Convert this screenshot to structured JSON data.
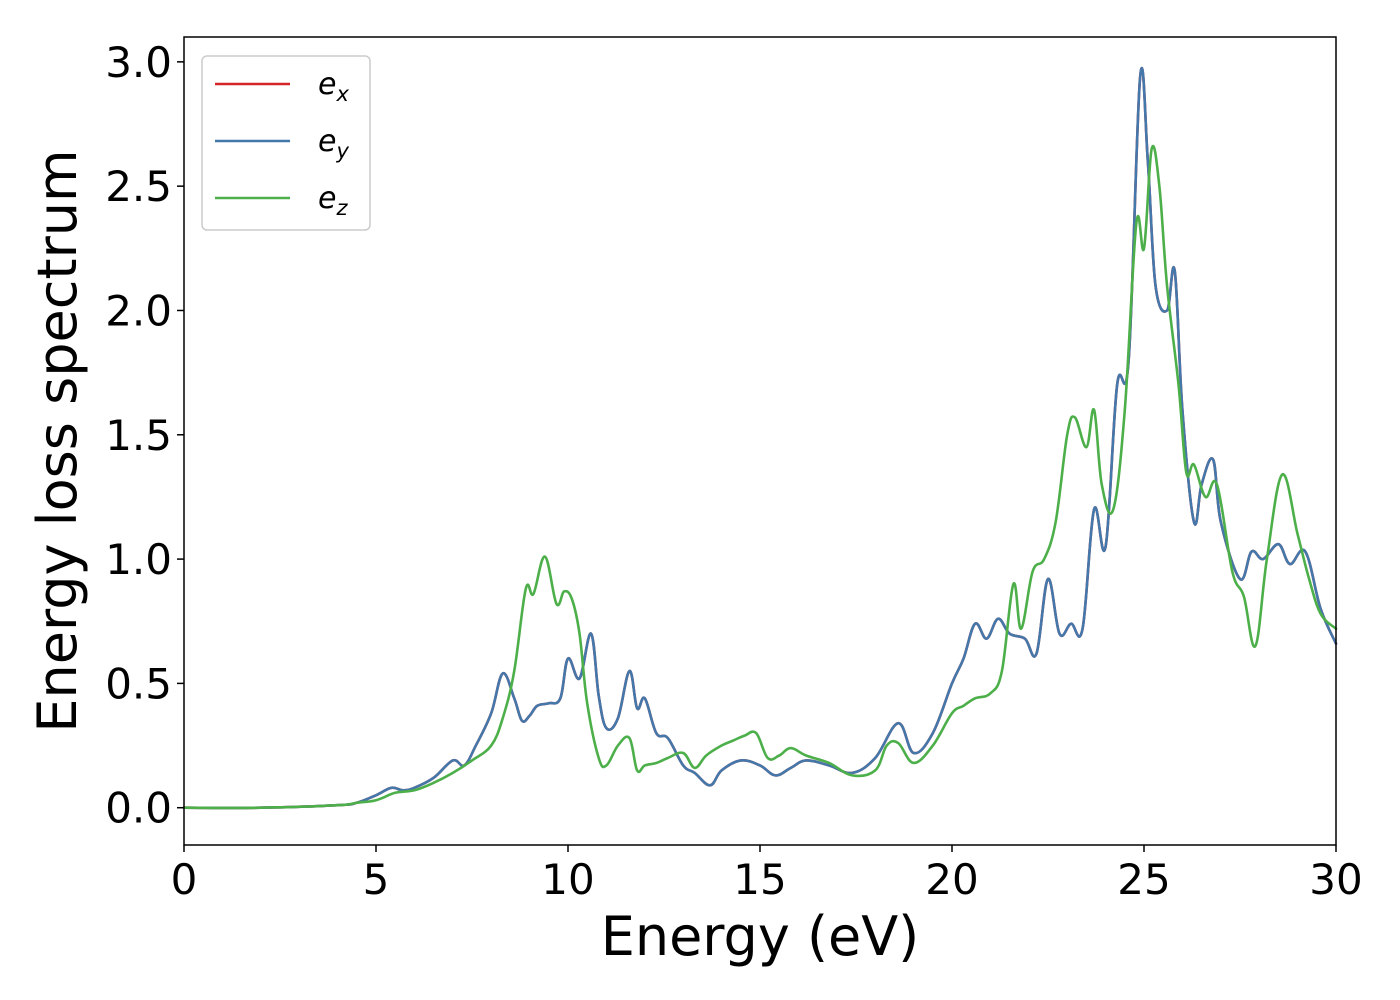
{
  "chart_data": {
    "type": "line",
    "title": "",
    "xlabel": "Energy (eV)",
    "ylabel": "Energy loss spectrum",
    "xlim": [
      0,
      30
    ],
    "ylim": [
      -0.15,
      3.1
    ],
    "xticks": [
      0,
      5,
      10,
      15,
      20,
      25,
      30
    ],
    "xtick_labels": [
      "0",
      "5",
      "10",
      "15",
      "20",
      "25",
      "30"
    ],
    "yticks": [
      0.0,
      0.5,
      1.0,
      1.5,
      2.0,
      2.5,
      3.0
    ],
    "ytick_labels": [
      "0.0",
      "0.5",
      "1.0",
      "1.5",
      "2.0",
      "2.5",
      "3.0"
    ],
    "grid": false,
    "legend": {
      "position": "top-left",
      "entries": [
        {
          "base": "e",
          "sub": "x",
          "color": "#d62728"
        },
        {
          "base": "e",
          "sub": "y",
          "color": "#4477aa"
        },
        {
          "base": "e",
          "sub": "z",
          "color": "#4daf4a"
        }
      ]
    },
    "series": [
      {
        "color": "#d62728",
        "x": [
          0,
          2,
          4,
          4.5,
          5,
          5.4,
          5.7,
          6,
          6.5,
          7,
          7.3,
          7.6,
          8,
          8.3,
          8.6,
          8.8,
          9,
          9.2,
          9.5,
          9.8,
          10,
          10.3,
          10.6,
          10.8,
          11,
          11.3,
          11.6,
          11.8,
          12,
          12.3,
          12.6,
          13,
          13.3,
          13.7,
          14,
          14.5,
          15,
          15.4,
          15.8,
          16.2,
          16.8,
          17.4,
          18,
          18.6,
          19,
          19.5,
          20,
          20.3,
          20.6,
          20.9,
          21.2,
          21.5,
          21.9,
          22.2,
          22.5,
          22.8,
          23.1,
          23.4,
          23.7,
          24,
          24.3,
          24.6,
          24.9,
          25.1,
          25.3,
          25.6,
          25.8,
          26,
          26.3,
          26.5,
          26.8,
          27,
          27.5,
          27.8,
          28.1,
          28.5,
          28.8,
          29.2,
          29.6,
          30
        ],
        "values": [
          0.0,
          0.0,
          0.01,
          0.02,
          0.05,
          0.08,
          0.07,
          0.08,
          0.12,
          0.19,
          0.17,
          0.25,
          0.38,
          0.54,
          0.44,
          0.35,
          0.37,
          0.41,
          0.42,
          0.44,
          0.6,
          0.52,
          0.7,
          0.45,
          0.32,
          0.36,
          0.55,
          0.4,
          0.44,
          0.3,
          0.28,
          0.17,
          0.14,
          0.09,
          0.15,
          0.19,
          0.17,
          0.13,
          0.16,
          0.19,
          0.17,
          0.14,
          0.2,
          0.34,
          0.22,
          0.3,
          0.5,
          0.6,
          0.74,
          0.68,
          0.76,
          0.7,
          0.68,
          0.62,
          0.92,
          0.7,
          0.74,
          0.72,
          1.2,
          1.05,
          1.7,
          1.8,
          2.94,
          2.6,
          2.1,
          2.0,
          2.16,
          1.6,
          1.15,
          1.3,
          1.4,
          1.15,
          0.92,
          1.03,
          1.0,
          1.06,
          0.98,
          1.03,
          0.8,
          0.66
        ]
      },
      {
        "color": "#4477aa",
        "x": [
          0,
          2,
          4,
          4.5,
          5,
          5.4,
          5.7,
          6,
          6.5,
          7,
          7.3,
          7.6,
          8,
          8.3,
          8.6,
          8.8,
          9,
          9.2,
          9.5,
          9.8,
          10,
          10.3,
          10.6,
          10.8,
          11,
          11.3,
          11.6,
          11.8,
          12,
          12.3,
          12.6,
          13,
          13.3,
          13.7,
          14,
          14.5,
          15,
          15.4,
          15.8,
          16.2,
          16.8,
          17.4,
          18,
          18.6,
          19,
          19.5,
          20,
          20.3,
          20.6,
          20.9,
          21.2,
          21.5,
          21.9,
          22.2,
          22.5,
          22.8,
          23.1,
          23.4,
          23.7,
          24,
          24.3,
          24.6,
          24.9,
          25.1,
          25.3,
          25.6,
          25.8,
          26,
          26.3,
          26.5,
          26.8,
          27,
          27.5,
          27.8,
          28.1,
          28.5,
          28.8,
          29.2,
          29.6,
          30
        ],
        "values": [
          0.0,
          0.0,
          0.01,
          0.02,
          0.05,
          0.08,
          0.07,
          0.08,
          0.12,
          0.19,
          0.17,
          0.25,
          0.38,
          0.54,
          0.44,
          0.35,
          0.37,
          0.41,
          0.42,
          0.44,
          0.6,
          0.52,
          0.7,
          0.45,
          0.32,
          0.36,
          0.55,
          0.4,
          0.44,
          0.3,
          0.28,
          0.17,
          0.14,
          0.09,
          0.15,
          0.19,
          0.17,
          0.13,
          0.16,
          0.19,
          0.17,
          0.14,
          0.2,
          0.34,
          0.22,
          0.3,
          0.5,
          0.6,
          0.74,
          0.68,
          0.76,
          0.7,
          0.68,
          0.62,
          0.92,
          0.7,
          0.74,
          0.72,
          1.2,
          1.05,
          1.7,
          1.8,
          2.94,
          2.6,
          2.1,
          2.0,
          2.16,
          1.6,
          1.15,
          1.3,
          1.4,
          1.15,
          0.92,
          1.03,
          1.0,
          1.06,
          0.98,
          1.03,
          0.8,
          0.66
        ]
      },
      {
        "color": "#4daf4a",
        "x": [
          0,
          2,
          4,
          4.5,
          5,
          5.5,
          6,
          6.5,
          7,
          7.5,
          8,
          8.3,
          8.6,
          8.9,
          9.1,
          9.4,
          9.7,
          9.9,
          10.1,
          10.3,
          10.5,
          10.8,
          11,
          11.3,
          11.6,
          11.8,
          12,
          12.3,
          12.6,
          13,
          13.3,
          13.6,
          14,
          14.3,
          14.6,
          14.9,
          15.2,
          15.5,
          15.8,
          16.2,
          16.8,
          17.4,
          18,
          18.3,
          18.6,
          19,
          19.5,
          20,
          20.3,
          20.6,
          21,
          21.3,
          21.6,
          21.8,
          22.1,
          22.4,
          22.7,
          23,
          23.2,
          23.5,
          23.7,
          23.9,
          24.2,
          24.5,
          24.8,
          25.0,
          25.2,
          25.4,
          25.6,
          25.9,
          26.1,
          26.3,
          26.6,
          26.9,
          27.3,
          27.6,
          27.9,
          28.2,
          28.6,
          29.0,
          29.3,
          29.6,
          30
        ],
        "values": [
          0.0,
          0.0,
          0.01,
          0.02,
          0.03,
          0.06,
          0.07,
          0.1,
          0.14,
          0.19,
          0.25,
          0.36,
          0.55,
          0.88,
          0.86,
          1.01,
          0.82,
          0.87,
          0.84,
          0.7,
          0.42,
          0.2,
          0.17,
          0.25,
          0.28,
          0.15,
          0.17,
          0.18,
          0.2,
          0.22,
          0.16,
          0.21,
          0.25,
          0.27,
          0.29,
          0.3,
          0.2,
          0.21,
          0.24,
          0.21,
          0.18,
          0.13,
          0.15,
          0.25,
          0.26,
          0.18,
          0.25,
          0.38,
          0.41,
          0.44,
          0.46,
          0.55,
          0.9,
          0.72,
          0.95,
          1.0,
          1.15,
          1.5,
          1.57,
          1.45,
          1.6,
          1.3,
          1.2,
          1.6,
          2.35,
          2.25,
          2.65,
          2.5,
          2.1,
          1.7,
          1.35,
          1.38,
          1.25,
          1.3,
          0.95,
          0.85,
          0.65,
          1.0,
          1.34,
          1.1,
          0.92,
          0.78,
          0.72
        ]
      }
    ]
  }
}
